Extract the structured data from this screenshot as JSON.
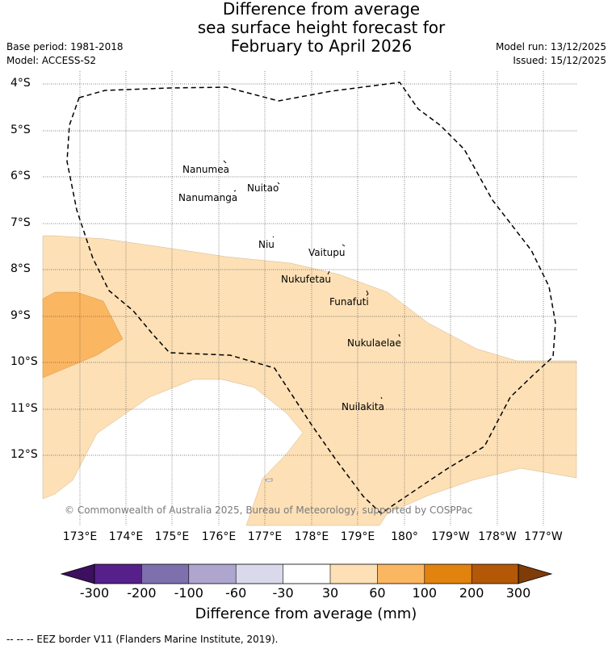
{
  "title": {
    "line1": "Difference from average",
    "line2": "sea surface height forecast for",
    "line3": "February to April 2026"
  },
  "meta_left": {
    "base_period": "Base period: 1981-2018",
    "model": "Model: ACCESS-S2"
  },
  "meta_right": {
    "model_run": "Model run: 13/12/2025",
    "issued": "Issued: 15/12/2025"
  },
  "map": {
    "latitude_labels": [
      "4°S",
      "5°S",
      "6°S",
      "7°S",
      "8°S",
      "9°S",
      "10°S",
      "11°S",
      "12°S"
    ],
    "longitude_labels": [
      "173°E",
      "174°E",
      "175°E",
      "176°E",
      "177°E",
      "178°E",
      "179°E",
      "180°",
      "179°W",
      "178°W",
      "177°W"
    ],
    "islands": [
      "Nanumea",
      "Nuitao",
      "Nanumanga",
      "Niu",
      "Vaitupu",
      "Nukufetau",
      "Funafuti",
      "Nukulaelae",
      "Nuilakita"
    ],
    "copyright": "© Commonwealth of Australia 2025, Bureau of Meteorology, supported by COSPPac",
    "fill_colors": {
      "light_orange": "#fde0b6",
      "medium_orange": "#fbb662"
    }
  },
  "colorbar": {
    "ticks": [
      "-300",
      "-200",
      "-100",
      "-60",
      "-30",
      "30",
      "60",
      "100",
      "200",
      "300"
    ],
    "colors": [
      "#3c0f5f",
      "#56208a",
      "#7e70ad",
      "#aea6cf",
      "#d9d9eb",
      "#ffffff",
      "#fde0b6",
      "#fbb662",
      "#e2820f",
      "#b35806",
      "#7f3b08"
    ],
    "label": "Difference from average (mm)"
  },
  "footer": {
    "legend_text": "--  --  -- EEZ border V11 (Flanders Marine Institute, 2019)."
  }
}
